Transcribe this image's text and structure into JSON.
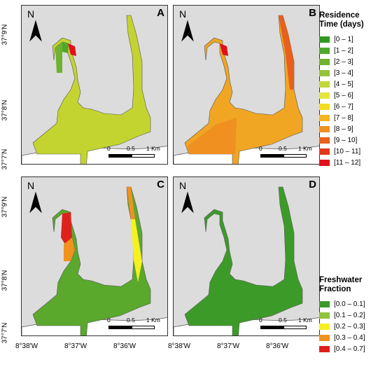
{
  "panels": [
    {
      "letter": "A",
      "fill": "#c3d430",
      "north": "N",
      "scale": [
        "0",
        "0.5",
        "1 Km"
      ]
    },
    {
      "letter": "B",
      "fill": "#f0a623",
      "north": "N",
      "scale": [
        "0",
        "0.5",
        "1 Km"
      ]
    },
    {
      "letter": "C",
      "fill": "#5aa82c",
      "north": "N",
      "scale": [
        "0",
        "0.5",
        "1 Km"
      ]
    },
    {
      "letter": "D",
      "fill": "#3c9b28",
      "north": "N",
      "scale": [
        "0",
        "0.5",
        "1 Km"
      ]
    }
  ],
  "lat_labels": [
    "37°9'N",
    "37°8'N",
    "37°7'N"
  ],
  "lon_labels": [
    "8°38'W",
    "8°37'W",
    "8°36'W"
  ],
  "legend_residence": {
    "title_line1": "Residence",
    "title_line2": "Time (days)",
    "items": [
      {
        "label": "[0 – 1]",
        "color": "#2f9a22"
      },
      {
        "label": "[1 – 2]",
        "color": "#4ea82a"
      },
      {
        "label": "[2 – 3]",
        "color": "#6fb22f"
      },
      {
        "label": "[3 – 4]",
        "color": "#95c43a"
      },
      {
        "label": "[4 – 5]",
        "color": "#c2d83a"
      },
      {
        "label": "[5 – 6]",
        "color": "#e6e63a"
      },
      {
        "label": "[6 – 7]",
        "color": "#f6dc20"
      },
      {
        "label": "[7 – 8]",
        "color": "#f6b420"
      },
      {
        "label": "[8 – 9]",
        "color": "#ef9020"
      },
      {
        "label": "[9 – 10]",
        "color": "#e8601c"
      },
      {
        "label": "[10 – 11]",
        "color": "#e3361a"
      },
      {
        "label": "[11 – 12]",
        "color": "#e0111a"
      }
    ]
  },
  "legend_freshwater": {
    "title_line1": "Freshwater",
    "title_line2": "Fraction",
    "items": [
      {
        "label": "[0.0 – 0.1]",
        "color": "#3c9b28"
      },
      {
        "label": "[0.1 – 0.2]",
        "color": "#8fc43c"
      },
      {
        "label": "[0.2 – 0.3]",
        "color": "#f6f020"
      },
      {
        "label": "[0.3 – 0.4]",
        "color": "#f0921e"
      },
      {
        "label": "[0.4 – 0.7]",
        "color": "#e0201a"
      }
    ]
  }
}
